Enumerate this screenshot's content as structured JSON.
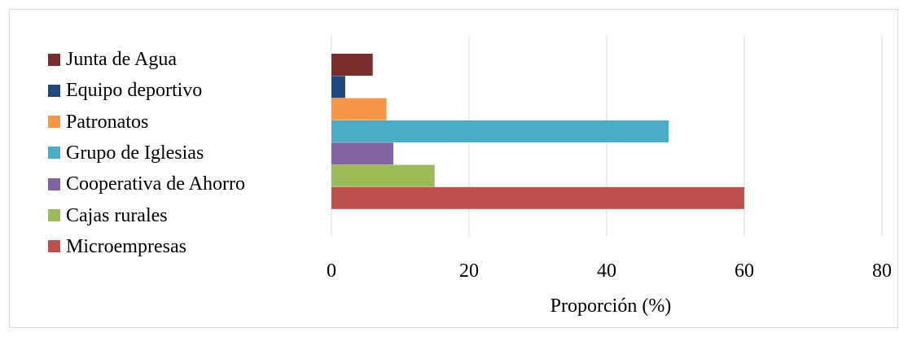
{
  "chart_data": {
    "type": "bar",
    "orientation": "horizontal",
    "categories": [
      "Microempresas",
      "Cajas rurales",
      "Cooperativa de Ahorro",
      "Grupo de Iglesias",
      "Patronatos",
      "Equipo deportivo",
      "Junta de Agua"
    ],
    "values": [
      60,
      15,
      9,
      49,
      8,
      2,
      6
    ],
    "colors": [
      "#c0504d",
      "#9bbb59",
      "#8064a2",
      "#4bacc6",
      "#f79646",
      "#1f497d",
      "#7b2c2c"
    ],
    "xlabel": "Proporción (%)",
    "ylabel": "",
    "xlim": [
      0,
      80
    ],
    "xticks": [
      "0",
      "20",
      "40",
      "60",
      "80"
    ],
    "grid": true,
    "legend_position": "left"
  }
}
